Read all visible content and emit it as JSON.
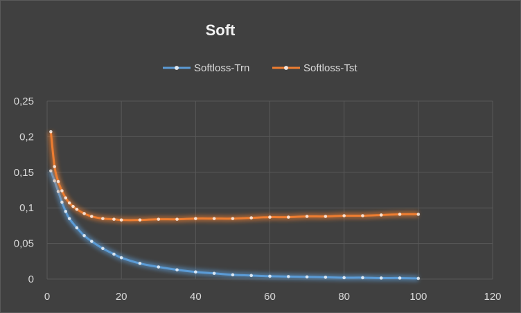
{
  "chart_data": {
    "type": "line",
    "title": "Soft",
    "xlabel": "",
    "ylabel": "",
    "xlim": [
      0,
      120
    ],
    "ylim": [
      0,
      0.25
    ],
    "x_ticks": [
      "0",
      "20",
      "40",
      "60",
      "80",
      "100",
      "120"
    ],
    "y_ticks": [
      "0",
      "0,05",
      "0,1",
      "0,15",
      "0,2",
      "0,25"
    ],
    "grid": true,
    "legend_position": "top",
    "series": [
      {
        "name": "Softloss-Trn",
        "color": "#5b9bd5",
        "x": [
          1,
          2,
          3,
          4,
          5,
          6,
          8,
          10,
          12,
          15,
          18,
          20,
          25,
          30,
          35,
          40,
          45,
          50,
          55,
          60,
          65,
          70,
          75,
          80,
          85,
          90,
          95,
          100
        ],
        "y": [
          0.152,
          0.138,
          0.123,
          0.108,
          0.095,
          0.085,
          0.072,
          0.061,
          0.053,
          0.043,
          0.035,
          0.03,
          0.022,
          0.017,
          0.013,
          0.01,
          0.008,
          0.006,
          0.005,
          0.004,
          0.0035,
          0.003,
          0.0025,
          0.002,
          0.002,
          0.0015,
          0.0015,
          0.001
        ]
      },
      {
        "name": "Softloss-Tst",
        "color": "#ed7d31",
        "x": [
          1,
          2,
          3,
          4,
          5,
          6,
          7,
          8,
          10,
          12,
          15,
          18,
          20,
          25,
          30,
          35,
          40,
          45,
          50,
          55,
          60,
          65,
          70,
          75,
          80,
          85,
          90,
          95,
          100
        ],
        "y": [
          0.207,
          0.158,
          0.137,
          0.124,
          0.114,
          0.107,
          0.102,
          0.098,
          0.092,
          0.088,
          0.085,
          0.084,
          0.083,
          0.083,
          0.084,
          0.084,
          0.085,
          0.085,
          0.085,
          0.086,
          0.087,
          0.087,
          0.088,
          0.088,
          0.089,
          0.089,
          0.09,
          0.091,
          0.091
        ]
      }
    ]
  }
}
